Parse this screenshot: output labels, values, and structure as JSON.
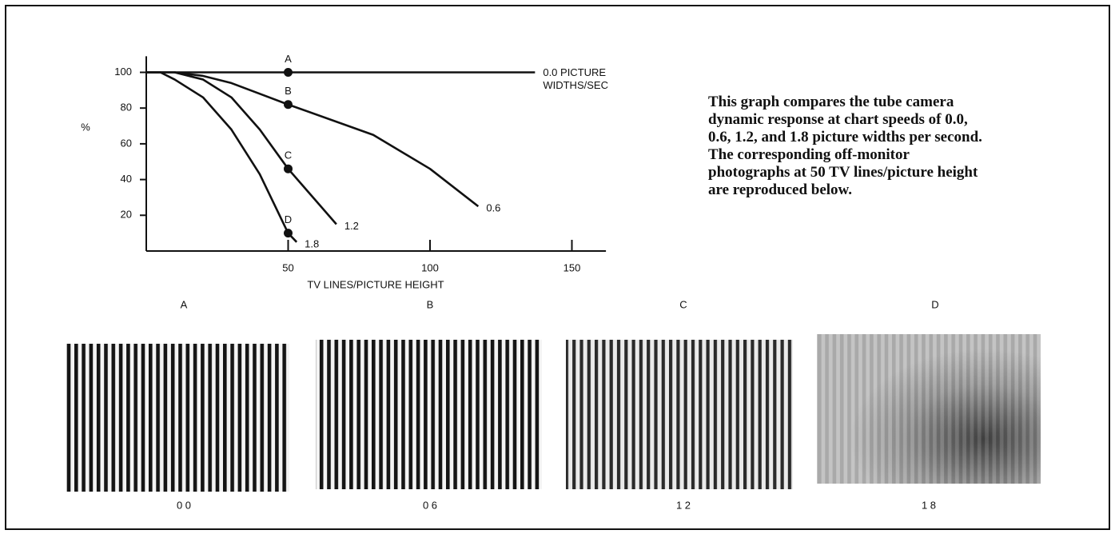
{
  "chart_data": {
    "type": "line",
    "xlabel": "TV LINES/PICTURE HEIGHT",
    "ylabel": "%",
    "xlim": [
      0,
      162
    ],
    "ylim": [
      0,
      109
    ],
    "xticks": [
      50,
      100,
      150
    ],
    "yticks": [
      20,
      40,
      60,
      80,
      100
    ],
    "color": "#111111",
    "series": [
      {
        "name": "0.0 PICTURE WIDTHS/SEC",
        "x": [
          0,
          137
        ],
        "values": [
          100,
          100
        ]
      },
      {
        "name": "0.6",
        "x": [
          0,
          10,
          20,
          30,
          40,
          50,
          80,
          100,
          117
        ],
        "values": [
          100,
          100,
          98,
          94,
          88,
          82,
          65,
          46,
          25
        ]
      },
      {
        "name": "1.2",
        "x": [
          10,
          20,
          30,
          40,
          50,
          67
        ],
        "values": [
          100,
          96,
          86,
          68,
          46,
          15
        ]
      },
      {
        "name": "1.8",
        "x": [
          0,
          5,
          10,
          20,
          30,
          40,
          50,
          53
        ],
        "values": [
          100,
          100,
          96,
          86,
          68,
          43,
          10,
          5
        ]
      }
    ],
    "points": [
      {
        "label": "A",
        "x": 50,
        "y": 100
      },
      {
        "label": "B",
        "x": 50,
        "y": 82
      },
      {
        "label": "C",
        "x": 50,
        "y": 46
      },
      {
        "label": "D",
        "x": 50,
        "y": 10
      }
    ]
  },
  "caption": "This graph compares the tube camera dynamic response at chart speeds of 0.0, 0.6, 1.2, and 1.8 picture widths per second. The corresponding off-monitor photographs at 50 TV lines/picture height are reproduced below.",
  "photos": [
    {
      "label": "A",
      "speed": "0 0"
    },
    {
      "label": "B",
      "speed": "0 6"
    },
    {
      "label": "C",
      "speed": "1 2"
    },
    {
      "label": "D",
      "speed": "1 8"
    }
  ]
}
